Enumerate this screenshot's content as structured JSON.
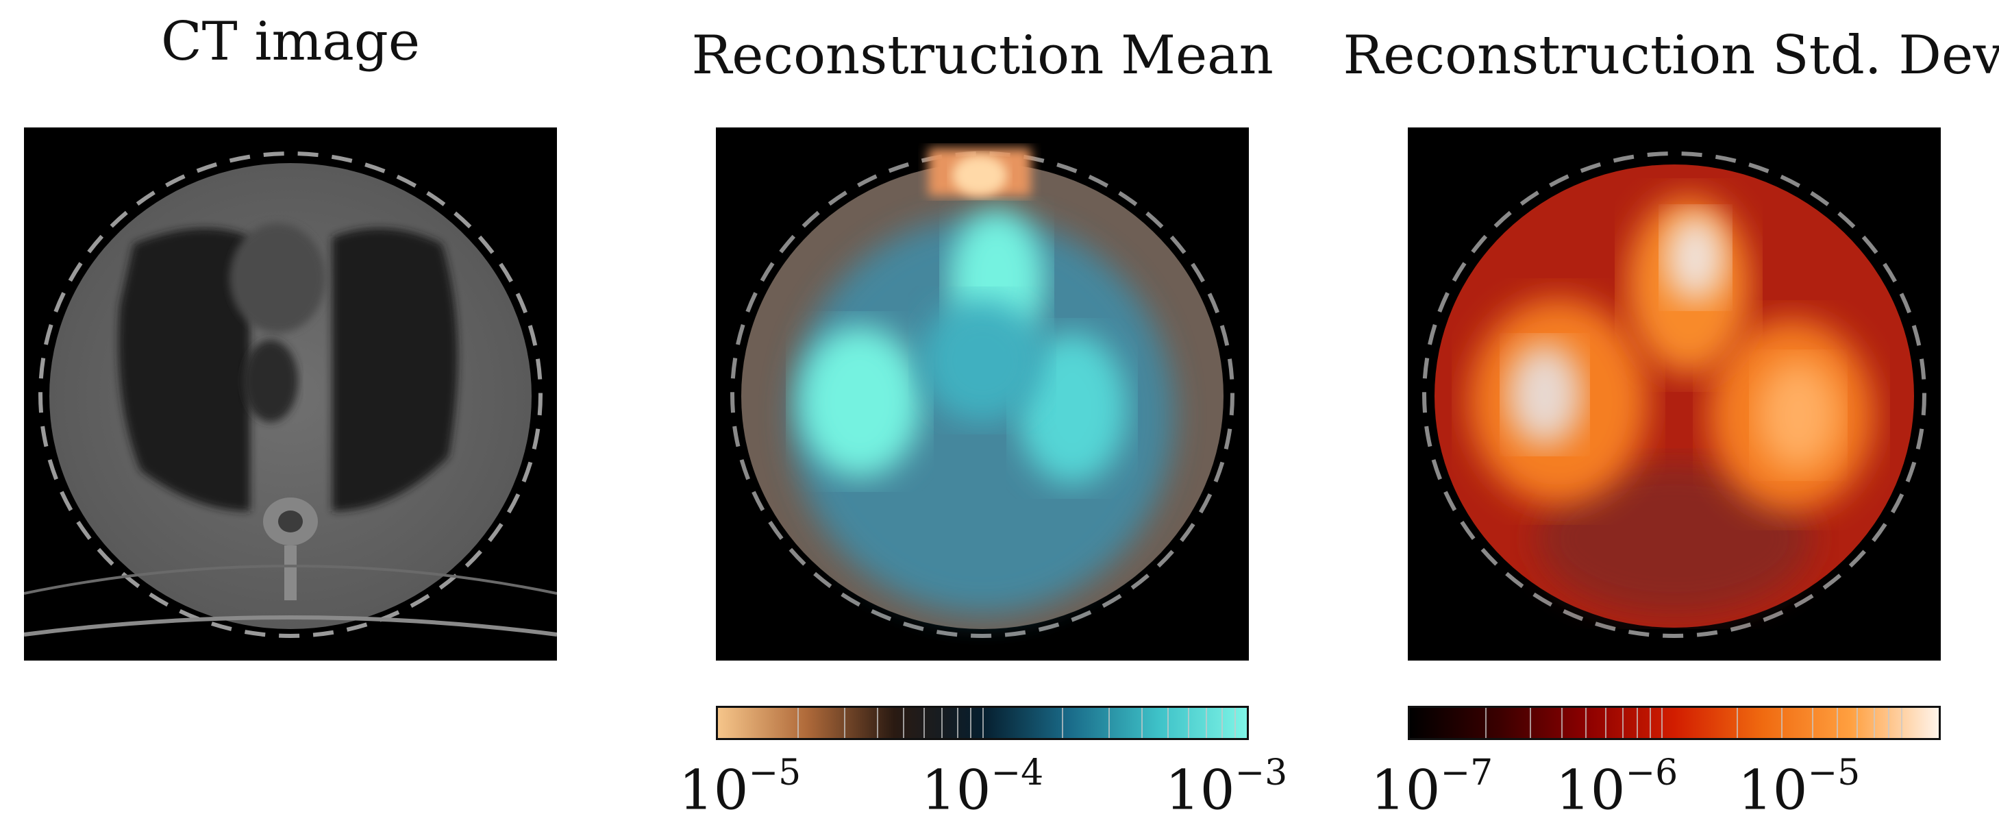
{
  "panels": [
    {
      "title": "CT image"
    },
    {
      "title": "Reconstruction Mean"
    },
    {
      "title": "Reconstruction Std. Dev."
    }
  ],
  "colorbars": {
    "mean": {
      "ticks": [
        {
          "base": "10",
          "exp": "−5"
        },
        {
          "base": "10",
          "exp": "−4"
        },
        {
          "base": "10",
          "exp": "−3"
        }
      ],
      "colors": [
        "#f5c58a",
        "#b06a3a",
        "#2a1a12",
        "#061e2e",
        "#1a6c8a",
        "#3ec2c8",
        "#7ff5e6"
      ]
    },
    "std": {
      "ticks": [
        {
          "base": "10",
          "exp": "−7"
        },
        {
          "base": "10",
          "exp": "−6"
        },
        {
          "base": "10",
          "exp": "−5"
        }
      ],
      "colors": [
        "#000000",
        "#3a0000",
        "#8c0000",
        "#d21d00",
        "#f06a10",
        "#ffa040",
        "#fff4ea"
      ]
    }
  }
}
